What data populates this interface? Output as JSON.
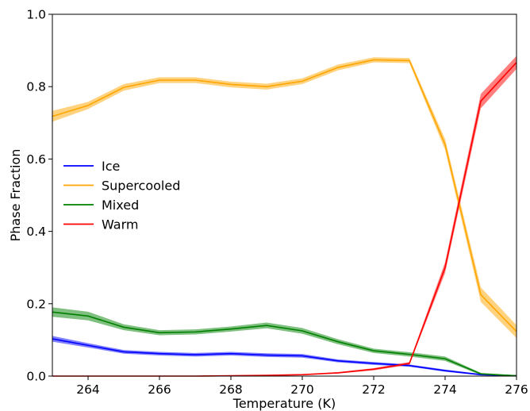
{
  "chart_data": {
    "type": "line",
    "xlabel": "Temperature (K)",
    "ylabel": "Phase Fraction",
    "xlim": [
      263,
      276
    ],
    "ylim": [
      0,
      1
    ],
    "xticks": [
      264,
      266,
      268,
      270,
      272,
      274,
      276
    ],
    "yticks": [
      0.0,
      0.2,
      0.4,
      0.6,
      0.8,
      1.0
    ],
    "ytick_labels": [
      "0.0",
      "0.2",
      "0.4",
      "0.6",
      "0.8",
      "1.0"
    ],
    "legend_position": "center-left",
    "x": [
      263,
      264,
      265,
      266,
      267,
      268,
      269,
      270,
      271,
      272,
      273,
      274,
      275,
      276
    ],
    "series": [
      {
        "name": "Ice",
        "color": "#0000ff",
        "values": [
          0.103,
          0.085,
          0.067,
          0.062,
          0.059,
          0.062,
          0.058,
          0.056,
          0.042,
          0.035,
          0.029,
          0.015,
          0.004,
          0.001
        ],
        "band": [
          0.008,
          0.006,
          0.005,
          0.005,
          0.005,
          0.005,
          0.005,
          0.005,
          0.004,
          0.004,
          0.003,
          0.003,
          0.002,
          0.001
        ]
      },
      {
        "name": "Supercooled",
        "color": "#ffa500",
        "values": [
          0.718,
          0.748,
          0.798,
          0.818,
          0.818,
          0.806,
          0.8,
          0.815,
          0.853,
          0.874,
          0.872,
          0.64,
          0.225,
          0.123
        ],
        "band": [
          0.015,
          0.01,
          0.009,
          0.008,
          0.008,
          0.008,
          0.008,
          0.008,
          0.008,
          0.007,
          0.007,
          0.015,
          0.02,
          0.018
        ]
      },
      {
        "name": "Mixed",
        "color": "#008000",
        "values": [
          0.177,
          0.166,
          0.135,
          0.12,
          0.122,
          0.13,
          0.14,
          0.125,
          0.095,
          0.07,
          0.06,
          0.048,
          0.006,
          0.001
        ],
        "band": [
          0.013,
          0.012,
          0.008,
          0.007,
          0.007,
          0.007,
          0.008,
          0.008,
          0.007,
          0.006,
          0.006,
          0.006,
          0.003,
          0.001
        ]
      },
      {
        "name": "Warm",
        "color": "#ff0000",
        "values": [
          0.0,
          0.0,
          0.0,
          0.0,
          0.0,
          0.001,
          0.002,
          0.004,
          0.009,
          0.019,
          0.035,
          0.3,
          0.76,
          0.867
        ],
        "band": [
          0.0005,
          0.0005,
          0.0005,
          0.0005,
          0.0005,
          0.001,
          0.001,
          0.001,
          0.002,
          0.003,
          0.004,
          0.015,
          0.02,
          0.018
        ]
      }
    ]
  }
}
